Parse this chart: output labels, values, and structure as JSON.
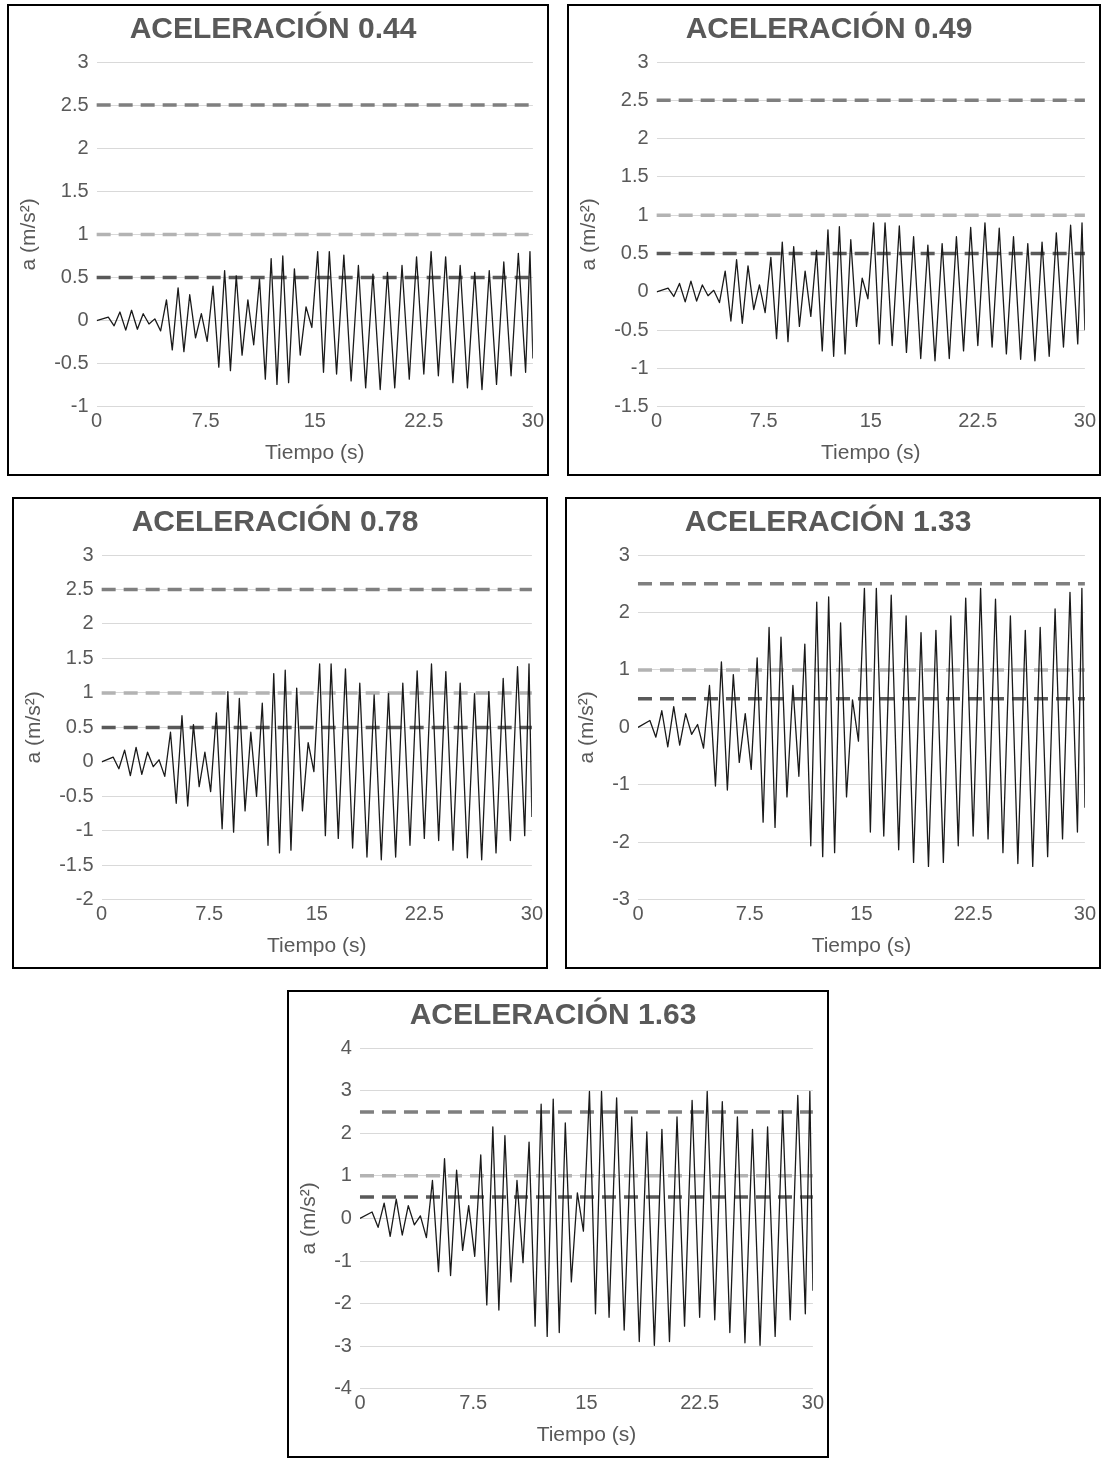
{
  "chart_data": [
    {
      "type": "line",
      "title": "ACELERACIÓN 0.44",
      "xlabel": "Tiempo (s)",
      "ylabel": "a (m/s²)",
      "xlim": [
        0,
        30
      ],
      "xticks": [
        0,
        7.5,
        15,
        22.5,
        30
      ],
      "ylim": [
        -1,
        3
      ],
      "yticks": [
        -1,
        -0.5,
        0,
        0.5,
        1,
        1.5,
        2,
        2.5,
        3
      ],
      "grid": "y",
      "legend": false,
      "marker": "none",
      "line_style": "solid",
      "x": [
        0,
        0.8,
        1.2,
        1.6,
        2.0,
        2.4,
        2.8,
        3.2,
        3.6,
        4.0,
        4.4,
        4.8,
        5.2,
        5.6,
        6.0,
        6.4,
        6.8,
        7.2,
        7.6,
        8.0,
        8.4,
        8.8,
        9.2,
        9.6,
        10.0,
        10.4,
        10.8,
        11.2,
        11.6,
        12.0,
        12.4,
        12.8,
        13.2,
        13.6,
        14.0,
        14.4,
        14.8,
        15.2,
        15.6,
        16.0,
        16.5,
        17.0,
        17.5,
        18.0,
        18.5,
        19.0,
        19.5,
        20.0,
        20.5,
        21.0,
        21.5,
        22.0,
        22.5,
        23.0,
        23.5,
        24.0,
        24.5,
        25.0,
        25.5,
        26.0,
        26.5,
        27.0,
        27.5,
        28.0,
        28.5,
        29.0,
        29.5,
        29.8,
        30.0
      ],
      "series": [
        {
          "color": "#1a1a1a",
          "values": [
            0,
            0.04,
            -0.06,
            0.1,
            -0.11,
            0.12,
            -0.1,
            0.08,
            -0.04,
            0.02,
            -0.12,
            0.24,
            -0.34,
            0.38,
            -0.36,
            0.3,
            -0.2,
            0.08,
            -0.24,
            0.4,
            -0.54,
            0.58,
            -0.58,
            0.52,
            -0.4,
            0.24,
            -0.28,
            0.48,
            -0.68,
            0.72,
            -0.74,
            0.75,
            -0.72,
            0.6,
            -0.4,
            0.16,
            -0.08,
            0.8,
            -0.6,
            0.8,
            -0.62,
            0.76,
            -0.7,
            0.64,
            -0.78,
            0.54,
            -0.8,
            0.56,
            -0.78,
            0.64,
            -0.68,
            0.74,
            -0.62,
            0.8,
            -0.64,
            0.74,
            -0.72,
            0.64,
            -0.78,
            0.56,
            -0.8,
            0.58,
            -0.74,
            0.68,
            -0.64,
            0.78,
            -0.6,
            0.8,
            -0.44
          ]
        }
      ],
      "ref_lines": [
        {
          "axis": "y",
          "value": 2.5,
          "color": "#7f7f7f",
          "line_style": "dashed"
        },
        {
          "axis": "y",
          "value": 1,
          "color": "#b3b3b3",
          "line_style": "dashed"
        },
        {
          "axis": "y",
          "value": 0.5,
          "color": "#595959",
          "line_style": "dashed"
        }
      ]
    },
    {
      "type": "line",
      "title": "ACELERACIÓN 0.49",
      "xlabel": "Tiempo (s)",
      "ylabel": "a (m/s²)",
      "xlim": [
        0,
        30
      ],
      "xticks": [
        0,
        7.5,
        15,
        22.5,
        30
      ],
      "ylim": [
        -1.5,
        3
      ],
      "yticks": [
        -1.5,
        -1,
        -0.5,
        0,
        0.5,
        1,
        1.5,
        2,
        2.5,
        3
      ],
      "grid": "y",
      "legend": false,
      "marker": "none",
      "line_style": "solid",
      "x": [
        0,
        0.8,
        1.2,
        1.6,
        2.0,
        2.4,
        2.8,
        3.2,
        3.6,
        4.0,
        4.4,
        4.8,
        5.2,
        5.6,
        6.0,
        6.4,
        6.8,
        7.2,
        7.6,
        8.0,
        8.4,
        8.8,
        9.2,
        9.6,
        10.0,
        10.4,
        10.8,
        11.2,
        11.6,
        12.0,
        12.4,
        12.8,
        13.2,
        13.6,
        14.0,
        14.4,
        14.8,
        15.2,
        15.6,
        16.0,
        16.5,
        17.0,
        17.5,
        18.0,
        18.5,
        19.0,
        19.5,
        20.0,
        20.5,
        21.0,
        21.5,
        22.0,
        22.5,
        23.0,
        23.5,
        24.0,
        24.5,
        25.0,
        25.5,
        26.0,
        26.5,
        27.0,
        27.5,
        28.0,
        28.5,
        29.0,
        29.5,
        29.8,
        30.0
      ],
      "series": [
        {
          "color": "#1a1a1a",
          "values": [
            0,
            0.05,
            -0.06,
            0.11,
            -0.13,
            0.14,
            -0.12,
            0.09,
            -0.05,
            0.02,
            -0.14,
            0.27,
            -0.38,
            0.42,
            -0.41,
            0.34,
            -0.23,
            0.09,
            -0.27,
            0.45,
            -0.61,
            0.65,
            -0.65,
            0.59,
            -0.45,
            0.27,
            -0.32,
            0.54,
            -0.77,
            0.81,
            -0.84,
            0.85,
            -0.81,
            0.68,
            -0.45,
            0.18,
            -0.09,
            0.9,
            -0.68,
            0.9,
            -0.7,
            0.86,
            -0.79,
            0.72,
            -0.87,
            0.61,
            -0.9,
            0.63,
            -0.87,
            0.72,
            -0.77,
            0.84,
            -0.7,
            0.9,
            -0.72,
            0.83,
            -0.81,
            0.72,
            -0.88,
            0.63,
            -0.9,
            0.65,
            -0.84,
            0.77,
            -0.72,
            0.87,
            -0.68,
            0.9,
            -0.5
          ]
        }
      ],
      "ref_lines": [
        {
          "axis": "y",
          "value": 2.5,
          "color": "#7f7f7f",
          "line_style": "dashed"
        },
        {
          "axis": "y",
          "value": 1,
          "color": "#b3b3b3",
          "line_style": "dashed"
        },
        {
          "axis": "y",
          "value": 0.5,
          "color": "#595959",
          "line_style": "dashed"
        }
      ]
    },
    {
      "type": "line",
      "title": "ACELERACIÓN 0.78",
      "xlabel": "Tiempo (s)",
      "ylabel": "a (m/s²)",
      "xlim": [
        0,
        30
      ],
      "xticks": [
        0,
        7.5,
        15,
        22.5,
        30
      ],
      "ylim": [
        -2,
        3
      ],
      "yticks": [
        -2,
        -1.5,
        -1,
        -0.5,
        0,
        0.5,
        1,
        1.5,
        2,
        2.5,
        3
      ],
      "grid": "y",
      "legend": false,
      "marker": "none",
      "line_style": "solid",
      "x": [
        0,
        0.8,
        1.2,
        1.6,
        2.0,
        2.4,
        2.8,
        3.2,
        3.6,
        4.0,
        4.4,
        4.8,
        5.2,
        5.6,
        6.0,
        6.4,
        6.8,
        7.2,
        7.6,
        8.0,
        8.4,
        8.8,
        9.2,
        9.6,
        10.0,
        10.4,
        10.8,
        11.2,
        11.6,
        12.0,
        12.4,
        12.8,
        13.2,
        13.6,
        14.0,
        14.4,
        14.8,
        15.2,
        15.6,
        16.0,
        16.5,
        17.0,
        17.5,
        18.0,
        18.5,
        19.0,
        19.5,
        20.0,
        20.5,
        21.0,
        21.5,
        22.0,
        22.5,
        23.0,
        23.5,
        24.0,
        24.5,
        25.0,
        25.5,
        26.0,
        26.5,
        27.0,
        27.5,
        28.0,
        28.5,
        29.0,
        29.5,
        29.8,
        30.0
      ],
      "series": [
        {
          "color": "#1a1a1a",
          "values": [
            0,
            0.07,
            -0.1,
            0.17,
            -0.2,
            0.21,
            -0.18,
            0.14,
            -0.07,
            0.03,
            -0.21,
            0.43,
            -0.6,
            0.67,
            -0.64,
            0.54,
            -0.36,
            0.14,
            -0.43,
            0.71,
            -0.97,
            1.02,
            -1.02,
            0.92,
            -0.71,
            0.43,
            -0.5,
            0.85,
            -1.21,
            1.28,
            -1.32,
            1.33,
            -1.28,
            1.07,
            -0.71,
            0.28,
            -0.14,
            1.42,
            -1.07,
            1.42,
            -1.11,
            1.35,
            -1.25,
            1.14,
            -1.38,
            0.97,
            -1.42,
            0.99,
            -1.38,
            1.14,
            -1.21,
            1.32,
            -1.11,
            1.42,
            -1.14,
            1.31,
            -1.28,
            1.14,
            -1.39,
            0.99,
            -1.42,
            1.02,
            -1.32,
            1.21,
            -1.14,
            1.38,
            -1.07,
            1.42,
            -0.8
          ]
        }
      ],
      "ref_lines": [
        {
          "axis": "y",
          "value": 2.5,
          "color": "#7f7f7f",
          "line_style": "dashed"
        },
        {
          "axis": "y",
          "value": 1,
          "color": "#b3b3b3",
          "line_style": "dashed"
        },
        {
          "axis": "y",
          "value": 0.5,
          "color": "#595959",
          "line_style": "dashed"
        }
      ]
    },
    {
      "type": "line",
      "title": "ACELERACIÓN 1.33",
      "xlabel": "Tiempo (s)",
      "ylabel": "a (m/s²)",
      "xlim": [
        0,
        30
      ],
      "xticks": [
        0,
        7.5,
        15,
        22.5,
        30
      ],
      "ylim": [
        -3,
        3
      ],
      "yticks": [
        -3,
        -2,
        -1,
        0,
        1,
        2,
        3
      ],
      "grid": "y",
      "legend": false,
      "marker": "none",
      "line_style": "solid",
      "x": [
        0,
        0.8,
        1.2,
        1.6,
        2.0,
        2.4,
        2.8,
        3.2,
        3.6,
        4.0,
        4.4,
        4.8,
        5.2,
        5.6,
        6.0,
        6.4,
        6.8,
        7.2,
        7.6,
        8.0,
        8.4,
        8.8,
        9.2,
        9.6,
        10.0,
        10.4,
        10.8,
        11.2,
        11.6,
        12.0,
        12.4,
        12.8,
        13.2,
        13.6,
        14.0,
        14.4,
        14.8,
        15.2,
        15.6,
        16.0,
        16.5,
        17.0,
        17.5,
        18.0,
        18.5,
        19.0,
        19.5,
        20.0,
        20.5,
        21.0,
        21.5,
        22.0,
        22.5,
        23.0,
        23.5,
        24.0,
        24.5,
        25.0,
        25.5,
        26.0,
        26.5,
        27.0,
        27.5,
        28.0,
        28.5,
        29.0,
        29.5,
        29.8,
        30.0
      ],
      "series": [
        {
          "color": "#1a1a1a",
          "values": [
            0,
            0.12,
            -0.17,
            0.29,
            -0.34,
            0.36,
            -0.31,
            0.24,
            -0.12,
            0.05,
            -0.36,
            0.73,
            -1.02,
            1.14,
            -1.09,
            0.92,
            -0.61,
            0.24,
            -0.73,
            1.21,
            -1.65,
            1.74,
            -1.74,
            1.57,
            -1.21,
            0.73,
            -0.85,
            1.45,
            -2.06,
            2.18,
            -2.25,
            2.27,
            -2.18,
            1.82,
            -1.21,
            0.48,
            -0.24,
            2.42,
            -1.82,
            2.42,
            -1.89,
            2.3,
            -2.13,
            1.94,
            -2.35,
            1.65,
            -2.42,
            1.69,
            -2.35,
            1.94,
            -2.06,
            2.25,
            -1.89,
            2.42,
            -1.94,
            2.23,
            -2.18,
            1.94,
            -2.37,
            1.69,
            -2.42,
            1.74,
            -2.25,
            2.06,
            -1.94,
            2.35,
            -1.82,
            2.42,
            -1.4
          ]
        }
      ],
      "ref_lines": [
        {
          "axis": "y",
          "value": 2.5,
          "color": "#7f7f7f",
          "line_style": "dashed"
        },
        {
          "axis": "y",
          "value": 1,
          "color": "#b3b3b3",
          "line_style": "dashed"
        },
        {
          "axis": "y",
          "value": 0.5,
          "color": "#595959",
          "line_style": "dashed"
        }
      ]
    },
    {
      "type": "line",
      "title": "ACELERACIÓN 1.63",
      "xlabel": "Tiempo (s)",
      "ylabel": "a (m/s²)",
      "xlim": [
        0,
        30
      ],
      "xticks": [
        0,
        7.5,
        15,
        22.5,
        30
      ],
      "ylim": [
        -4,
        4
      ],
      "yticks": [
        -4,
        -3,
        -2,
        -1,
        0,
        1,
        2,
        3,
        4
      ],
      "grid": "y",
      "legend": false,
      "marker": "none",
      "line_style": "solid",
      "x": [
        0,
        0.8,
        1.2,
        1.6,
        2.0,
        2.4,
        2.8,
        3.2,
        3.6,
        4.0,
        4.4,
        4.8,
        5.2,
        5.6,
        6.0,
        6.4,
        6.8,
        7.2,
        7.6,
        8.0,
        8.4,
        8.8,
        9.2,
        9.6,
        10.0,
        10.4,
        10.8,
        11.2,
        11.6,
        12.0,
        12.4,
        12.8,
        13.2,
        13.6,
        14.0,
        14.4,
        14.8,
        15.2,
        15.6,
        16.0,
        16.5,
        17.0,
        17.5,
        18.0,
        18.5,
        19.0,
        19.5,
        20.0,
        20.5,
        21.0,
        21.5,
        22.0,
        22.5,
        23.0,
        23.5,
        24.0,
        24.5,
        25.0,
        25.5,
        26.0,
        26.5,
        27.0,
        27.5,
        28.0,
        28.5,
        29.0,
        29.5,
        29.8,
        30.0
      ],
      "series": [
        {
          "color": "#1a1a1a",
          "values": [
            0,
            0.15,
            -0.21,
            0.36,
            -0.42,
            0.45,
            -0.39,
            0.3,
            -0.15,
            0.06,
            -0.45,
            0.89,
            -1.25,
            1.4,
            -1.34,
            1.13,
            -0.75,
            0.3,
            -0.89,
            1.49,
            -2.03,
            2.15,
            -2.15,
            1.94,
            -1.49,
            0.89,
            -1.04,
            1.79,
            -2.53,
            2.68,
            -2.77,
            2.8,
            -2.68,
            2.24,
            -1.49,
            0.6,
            -0.3,
            2.98,
            -2.24,
            2.98,
            -2.32,
            2.83,
            -2.62,
            2.38,
            -2.89,
            2.03,
            -2.98,
            2.09,
            -2.89,
            2.38,
            -2.53,
            2.77,
            -2.32,
            2.98,
            -2.38,
            2.74,
            -2.68,
            2.38,
            -2.92,
            2.09,
            -2.98,
            2.15,
            -2.77,
            2.53,
            -2.38,
            2.89,
            -2.24,
            2.98,
            -1.7
          ]
        }
      ],
      "ref_lines": [
        {
          "axis": "y",
          "value": 2.5,
          "color": "#7f7f7f",
          "line_style": "dashed"
        },
        {
          "axis": "y",
          "value": 1,
          "color": "#b3b3b3",
          "line_style": "dashed"
        },
        {
          "axis": "y",
          "value": 0.5,
          "color": "#595959",
          "line_style": "dashed"
        }
      ]
    }
  ]
}
